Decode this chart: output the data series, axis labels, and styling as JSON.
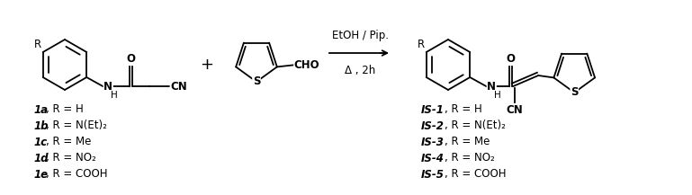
{
  "bg_color": "#ffffff",
  "fig_width": 7.69,
  "fig_height": 2.17,
  "dpi": 100,
  "reaction_label_top": "EtOH / Pip.",
  "reaction_label_bot": "Δ , 2h",
  "labels_left": [
    {
      "bold": "1a",
      "normal": ", R = H"
    },
    {
      "bold": "1b",
      "normal": ", R = N(Et)₂"
    },
    {
      "bold": "1c",
      "normal": ", R = Me"
    },
    {
      "bold": "1d",
      "normal": ", R = NO₂"
    },
    {
      "bold": "1e",
      "normal": ", R = COOH"
    }
  ],
  "labels_right": [
    {
      "bold": "IS-1",
      "normal": ", R = H"
    },
    {
      "bold": "IS-2",
      "normal": ", R = N(Et)₂"
    },
    {
      "bold": "IS-3",
      "normal": ", R = Me"
    },
    {
      "bold": "IS-4",
      "normal": ", R = NO₂"
    },
    {
      "bold": "IS-5",
      "normal": ", R = COOH"
    }
  ],
  "font_size_labels": 8.5,
  "font_size_reaction": 8.5,
  "font_size_plus": 13,
  "font_size_atom": 8.5,
  "lw": 1.3
}
